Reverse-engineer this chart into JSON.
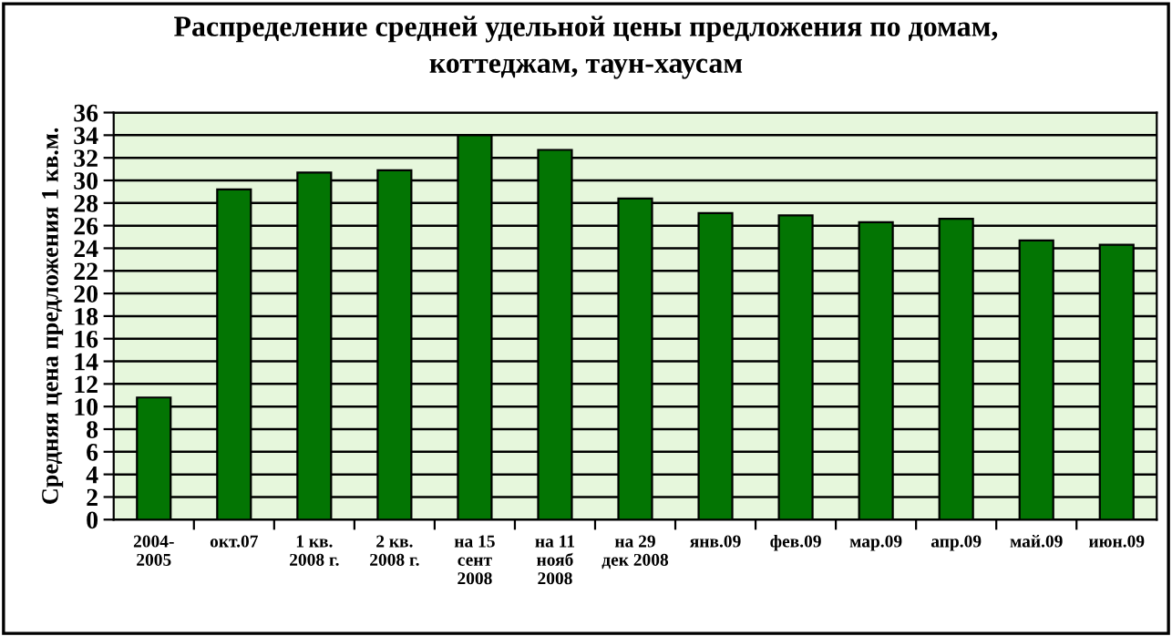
{
  "chart_data": {
    "type": "bar",
    "title": "Распределение средней удельной цены предложения по домам,\nкоттеджам, таун-хаусам",
    "ylabel": "Средняя цена предложения 1 кв.м.",
    "categories": [
      "2004-\n2005",
      "окт.07",
      "1 кв.\n2008 г.",
      "2 кв.\n2008 г.",
      "на 15\nсент\n2008",
      "на 11\nнояб\n2008",
      "на 29\nдек 2008",
      "янв.09",
      "фев.09",
      "мар.09",
      "апр.09",
      "май.09",
      "июн.09"
    ],
    "values": [
      10.8,
      29.2,
      30.7,
      30.9,
      34.0,
      32.7,
      28.4,
      27.1,
      26.9,
      26.3,
      26.6,
      24.7,
      24.3
    ],
    "color": "#037503",
    "ylim": [
      0,
      36
    ],
    "yticks": [
      0,
      2,
      4,
      6,
      8,
      10,
      12,
      14,
      16,
      18,
      20,
      22,
      24,
      26,
      28,
      30,
      32,
      34,
      36
    ],
    "grid": "y"
  }
}
